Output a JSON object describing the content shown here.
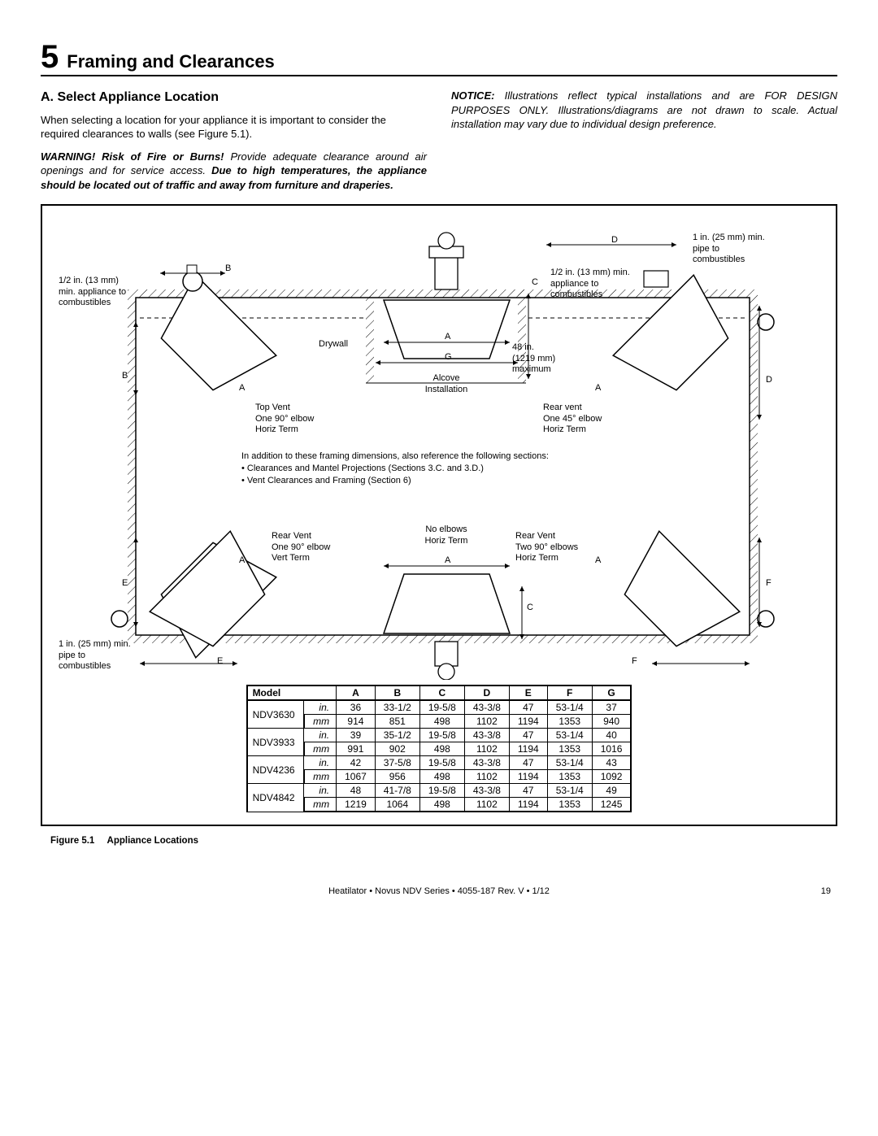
{
  "section": {
    "number": "5",
    "title": "Framing and Clearances"
  },
  "subsection": {
    "title": "A. Select Appliance Location",
    "body": "When selecting a location for your appliance it is important to consider the required clearances to walls (see Figure 5.1)."
  },
  "warning": {
    "label": "WARNING! Risk of Fire or Burns!",
    "body": " Provide adequate clearance around air openings and for service access. ",
    "bold_tail": "Due to high temperatures, the appliance should be located out of traffic and away from furniture and draperies."
  },
  "notice": {
    "label": "NOTICE:",
    "body": " Illustrations reflect typical installations and are FOR DESIGN PURPOSES ONLY. Illustrations/diagrams are not drawn to scale. Actual installation may vary due to individual design preference."
  },
  "diagram": {
    "left_note": "1/2 in. (13 mm) min. appliance to combustibles",
    "bottom_left_note": "1 in. (25 mm) min. pipe to combustibles",
    "right_top_note": "1 in. (25 mm) min. pipe to combustibles",
    "center_top_note": "1/2 in. (13 mm) min. appliance to combustibles",
    "drywall": "Drywall",
    "alcove1": "Alcove",
    "alcove2": "Installation",
    "max48_1": "48 in.",
    "max48_2": "(1219 mm)",
    "max48_3": "maximum",
    "top_vent_1": "Top Vent",
    "top_vent_2": "One 90° elbow",
    "top_vent_3": "Horiz Term",
    "rear_vent45_1": "Rear vent",
    "rear_vent45_2": "One 45° elbow",
    "rear_vent45_3": "Horiz Term",
    "rear_vent90v_1": "Rear Vent",
    "rear_vent90v_2": "One 90° elbow",
    "rear_vent90v_3": "Vert Term",
    "noelbow_1": "No elbows",
    "noelbow_2": "Horiz Term",
    "rear_ventT_1": "Rear Vent",
    "rear_ventT_2": "Two 90° elbows",
    "rear_ventT_3": "Horiz Term",
    "note_head": "In addition to these framing dimensions, also reference the following sections:",
    "note_b1": "•  Clearances and Mantel Projections (Sections 3.C. and 3.D.)",
    "note_b2": "•  Vent Clearances and Framing (Section 6)",
    "labels": {
      "A": "A",
      "B": "B",
      "C": "C",
      "D": "D",
      "E": "E",
      "F": "F",
      "G": "G"
    }
  },
  "table": {
    "columns": [
      "Model",
      "",
      "A",
      "B",
      "C",
      "D",
      "E",
      "F",
      "G"
    ],
    "rows": [
      {
        "model": "NDV3630",
        "unit": "in.",
        "vals": [
          "36",
          "33-1/2",
          "19-5/8",
          "43-3/8",
          "47",
          "53-1/4",
          "37"
        ]
      },
      {
        "model": "",
        "unit": "mm",
        "vals": [
          "914",
          "851",
          "498",
          "1102",
          "1194",
          "1353",
          "940"
        ]
      },
      {
        "model": "NDV3933",
        "unit": "in.",
        "vals": [
          "39",
          "35-1/2",
          "19-5/8",
          "43-3/8",
          "47",
          "53-1/4",
          "40"
        ]
      },
      {
        "model": "",
        "unit": "mm",
        "vals": [
          "991",
          "902",
          "498",
          "1102",
          "1194",
          "1353",
          "1016"
        ]
      },
      {
        "model": "NDV4236",
        "unit": "in.",
        "vals": [
          "42",
          "37-5/8",
          "19-5/8",
          "43-3/8",
          "47",
          "53-1/4",
          "43"
        ]
      },
      {
        "model": "",
        "unit": "mm",
        "vals": [
          "1067",
          "956",
          "498",
          "1102",
          "1194",
          "1353",
          "1092"
        ]
      },
      {
        "model": "NDV4842",
        "unit": "in.",
        "vals": [
          "48",
          "41-7/8",
          "19-5/8",
          "43-3/8",
          "47",
          "53-1/4",
          "49"
        ]
      },
      {
        "model": "",
        "unit": "mm",
        "vals": [
          "1219",
          "1064",
          "498",
          "1102",
          "1194",
          "1353",
          "1245"
        ]
      }
    ]
  },
  "figure_caption": {
    "num": "Figure 5.1",
    "title": "Appliance Locations"
  },
  "footer": {
    "center": "Heatilator  •  Novus NDV Series  •  4055-187 Rev. V  •  1/12",
    "page": "19"
  }
}
